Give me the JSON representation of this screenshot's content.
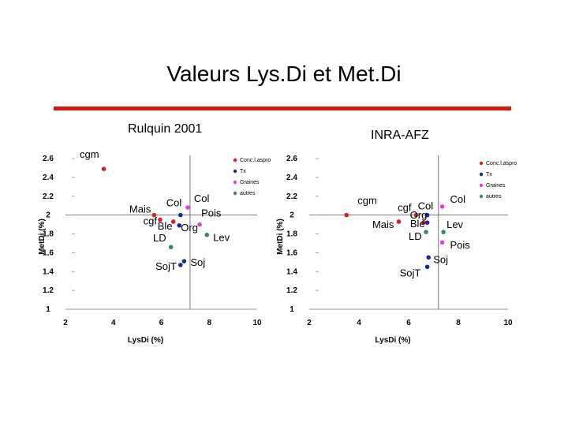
{
  "slide": {
    "title": "Valeurs Lys.Di et Met.Di",
    "accent_color": "#d4180f"
  },
  "chart_data": [
    {
      "type": "scatter",
      "title": "Rulquin 2001",
      "xlabel": "LysDi (%)",
      "ylabel": "MetDi (%)",
      "xlim": [
        2,
        10
      ],
      "ylim": [
        1,
        2.6
      ],
      "xticks": [
        "2",
        "4",
        "6",
        "8",
        "10"
      ],
      "yticks": [
        "1",
        "1.2",
        "1.4",
        "1.6",
        "1.8",
        "2",
        "2.2",
        "2.4",
        "2.6"
      ],
      "reference_lines": {
        "x": 7.2,
        "y": 2.0
      },
      "legend": [
        {
          "name": "Conc.l.aspro",
          "color": "#d42020"
        },
        {
          "name": "Tx",
          "color": "#1a2a9a"
        },
        {
          "name": "Graines",
          "color": "#e040d0"
        },
        {
          "name": "autres",
          "color": "#3a8a5a"
        }
      ],
      "points": [
        {
          "label": "cgm",
          "x": 3.6,
          "y": 2.49,
          "series": "Conc.l.aspro"
        },
        {
          "label": "Mais",
          "x": 5.7,
          "y": 2.0,
          "series": "Conc.l.aspro"
        },
        {
          "label": "cgf",
          "x": 5.95,
          "y": 1.95,
          "series": "Conc.l.aspro"
        },
        {
          "label": "Ble",
          "x": 6.5,
          "y": 1.93,
          "series": "Conc.l.aspro"
        },
        {
          "label": "Col",
          "x": 6.8,
          "y": 2.0,
          "series": "Tx"
        },
        {
          "label": "Org",
          "x": 6.75,
          "y": 1.89,
          "series": "Tx"
        },
        {
          "label": "Col",
          "x": 7.1,
          "y": 2.08,
          "series": "Graines"
        },
        {
          "label": "Pois",
          "x": 7.6,
          "y": 1.9,
          "series": "Graines"
        },
        {
          "label": "Lev",
          "x": 7.9,
          "y": 1.79,
          "series": "autres"
        },
        {
          "label": "LD",
          "x": 6.4,
          "y": 1.66,
          "series": "autres"
        },
        {
          "label": "Soj",
          "x": 6.95,
          "y": 1.51,
          "series": "Tx"
        },
        {
          "label": "SojT",
          "x": 6.8,
          "y": 1.47,
          "series": "Tx"
        }
      ]
    },
    {
      "type": "scatter",
      "title": "INRA-AFZ",
      "xlabel": "LysDi (%)",
      "ylabel": "MetDi (%)",
      "xlim": [
        2,
        10
      ],
      "ylim": [
        1,
        2.6
      ],
      "xticks": [
        "2",
        "4",
        "6",
        "8",
        "10"
      ],
      "yticks": [
        "1",
        "1.2",
        "1.4",
        "1.6",
        "1.8",
        "2",
        "2.2",
        "2.4",
        "2.6"
      ],
      "reference_lines": {
        "x": 7.2,
        "y": 2.0
      },
      "legend": [
        {
          "name": "Conc.l.aspro",
          "color": "#d42020"
        },
        {
          "name": "Tx",
          "color": "#1a2a9a"
        },
        {
          "name": "Graines",
          "color": "#e040d0"
        },
        {
          "name": "autres",
          "color": "#3a8a5a"
        }
      ],
      "points": [
        {
          "label": "cgm",
          "x": 3.5,
          "y": 2.0,
          "series": "Conc.l.aspro"
        },
        {
          "label": "cgf",
          "x": 6.3,
          "y": 2.0,
          "series": "Conc.l.aspro"
        },
        {
          "label": "Mais",
          "x": 5.6,
          "y": 1.93,
          "series": "Conc.l.aspro"
        },
        {
          "label": "Ble",
          "x": 6.6,
          "y": 1.92,
          "series": "Conc.l.aspro"
        },
        {
          "label": "Col",
          "x": 6.75,
          "y": 2.0,
          "series": "Tx"
        },
        {
          "label": "Org",
          "x": 6.75,
          "y": 1.92,
          "series": "Tx"
        },
        {
          "label": "Col",
          "x": 7.35,
          "y": 2.09,
          "series": "Graines"
        },
        {
          "label": "Lev",
          "x": 7.4,
          "y": 1.82,
          "series": "autres"
        },
        {
          "label": "LD",
          "x": 6.7,
          "y": 1.82,
          "series": "autres"
        },
        {
          "label": "Pois",
          "x": 7.35,
          "y": 1.71,
          "series": "Graines"
        },
        {
          "label": "Soj",
          "x": 6.8,
          "y": 1.55,
          "series": "Tx"
        },
        {
          "label": "SojT",
          "x": 6.75,
          "y": 1.45,
          "series": "Tx"
        }
      ]
    }
  ]
}
